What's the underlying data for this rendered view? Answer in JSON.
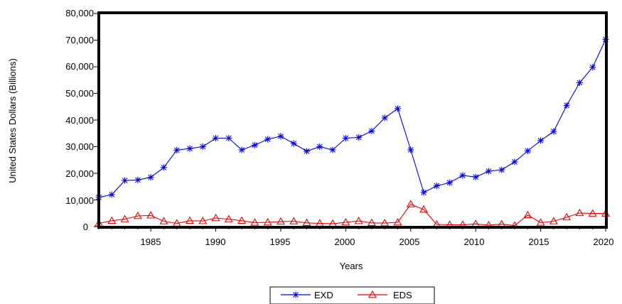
{
  "chart_data": {
    "type": "line",
    "title": "",
    "xlabel": "Years",
    "ylabel": "United States Dollars (Billions)",
    "x": [
      1981,
      1982,
      1983,
      1984,
      1985,
      1986,
      1987,
      1988,
      1989,
      1990,
      1991,
      1992,
      1993,
      1994,
      1995,
      1996,
      1997,
      1998,
      1999,
      2000,
      2001,
      2002,
      2003,
      2004,
      2005,
      2006,
      2007,
      2008,
      2009,
      2010,
      2011,
      2012,
      2013,
      2014,
      2015,
      2016,
      2017,
      2018,
      2019,
      2020
    ],
    "xlim": [
      1981,
      2020
    ],
    "ylim": [
      0,
      80000
    ],
    "x_ticks": [
      "1985",
      "1990",
      "1995",
      "2000",
      "2005",
      "2010",
      "2015",
      "2020"
    ],
    "y_ticks": [
      "0",
      "10,000",
      "20,000",
      "30,000",
      "40,000",
      "50,000",
      "60,000",
      "70,000",
      "80,000"
    ],
    "grid": false,
    "legend_position": "bottom-center",
    "series": [
      {
        "name": "EXD",
        "color": "#0000e6",
        "marker": "asterisk",
        "values": [
          11000,
          12000,
          17300,
          17500,
          18500,
          22200,
          28700,
          29300,
          30000,
          33200,
          33200,
          28800,
          30600,
          32800,
          33900,
          31200,
          28300,
          30000,
          28800,
          33200,
          33500,
          35900,
          40800,
          44300,
          28800,
          12800,
          15300,
          16500,
          19200,
          18600,
          20800,
          21300,
          24300,
          28400,
          32300,
          35700,
          45500,
          54000,
          59800,
          70300
        ]
      },
      {
        "name": "EDS",
        "color": "#e60000",
        "marker": "triangle",
        "values": [
          1200,
          2200,
          2800,
          4000,
          4200,
          2000,
          1200,
          2200,
          2100,
          3200,
          2800,
          2200,
          1500,
          1600,
          1900,
          2000,
          1400,
          1200,
          1100,
          1600,
          2100,
          1400,
          1300,
          1600,
          8400,
          6400,
          800,
          700,
          700,
          1000,
          500,
          900,
          400,
          4300,
          1500,
          2000,
          3500,
          5100,
          4900,
          4900
        ]
      }
    ]
  }
}
